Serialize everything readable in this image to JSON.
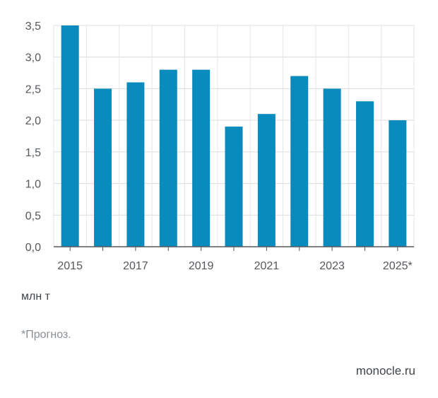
{
  "chart_data": {
    "type": "bar",
    "categories": [
      "2015",
      "2016",
      "2017",
      "2018",
      "2019",
      "2020",
      "2021",
      "2022",
      "2023",
      "2024",
      "2025*"
    ],
    "x_tick_labels": [
      "2015",
      "2017",
      "2019",
      "2021",
      "2023",
      "2025*"
    ],
    "values": [
      3.5,
      2.5,
      2.6,
      2.8,
      2.8,
      1.9,
      2.1,
      2.7,
      2.5,
      2.3,
      2.0
    ],
    "y_ticks": [
      "0,0",
      "0,5",
      "1,0",
      "1,5",
      "2,0",
      "2,5",
      "3,0",
      "3,5"
    ],
    "ylim": [
      0,
      3.5
    ],
    "grid": true,
    "bar_color": "#0a8bbd",
    "unit_label": "млн т"
  },
  "footnote": "*Прогноз.",
  "source": "monocle.ru"
}
